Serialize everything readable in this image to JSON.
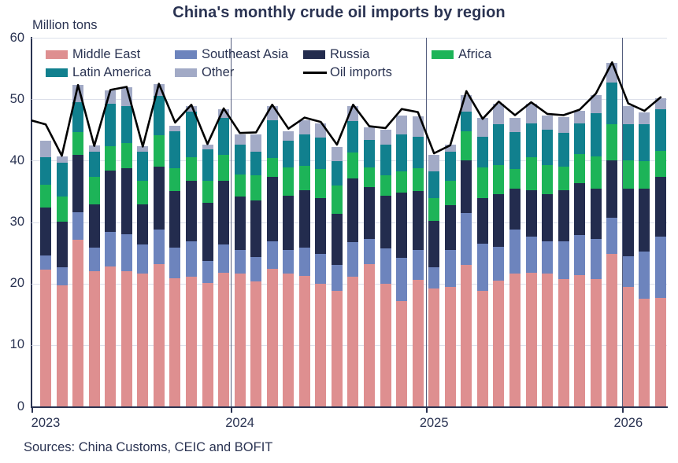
{
  "title": "China's monthly crude oil imports by region",
  "y_axis_unit": "Million tons",
  "source_note": "Sources: China Customs, CEIC and BOFIT",
  "colors": {
    "middle_east": "#DE8F90",
    "southeast_asia": "#6D84BD",
    "russia": "#232C4E",
    "africa": "#1DB458",
    "latin_america": "#11808E",
    "other": "#A2AAC6",
    "oil_imports_line": "#000000",
    "text": "#2A3352",
    "gridline": "#DCE0EA",
    "axis": "#2A3352",
    "background": "#FFFFFF"
  },
  "chart_data": {
    "type": "stacked_bar_with_line",
    "title": "China's monthly crude oil imports by region",
    "ylabel": "Million tons",
    "ylim": [
      0,
      60
    ],
    "ytick_interval": 10,
    "grid": "horizontal",
    "legend_position": "inside-top-left",
    "x_year_labels": [
      "2023",
      "2024",
      "2025",
      "2026"
    ],
    "months": [
      "2023-01",
      "2023-02",
      "2023-03",
      "2023-04",
      "2023-05",
      "2023-06",
      "2023-07",
      "2023-08",
      "2023-09",
      "2023-10",
      "2023-11",
      "2023-12",
      "2024-01",
      "2024-02",
      "2024-03",
      "2024-04",
      "2024-05",
      "2024-06",
      "2024-07",
      "2024-08",
      "2024-09",
      "2024-10",
      "2024-11",
      "2024-12",
      "2025-01",
      "2025-02",
      "2025-03",
      "2025-04",
      "2025-05",
      "2025-06",
      "2025-07",
      "2025-08",
      "2025-09",
      "2025-10",
      "2025-11",
      "2025-12",
      "2026-01",
      "2026-02",
      "2026-03"
    ],
    "series": [
      {
        "name": "Middle East",
        "color": "#DE8F90",
        "values": [
          22.2,
          19.7,
          27.1,
          22.0,
          22.8,
          22.0,
          21.6,
          23.1,
          20.9,
          21.1,
          20.1,
          21.8,
          21.6,
          20.3,
          22.4,
          21.6,
          21.2,
          19.9,
          18.8,
          21.1,
          23.1,
          20.0,
          17.2,
          20.6,
          19.2,
          19.4,
          23.0,
          18.8,
          20.5,
          21.6,
          21.7,
          21.6,
          20.7,
          21.4,
          20.7,
          24.8,
          19.4,
          17.5,
          17.7
        ]
      },
      {
        "name": "Southeast Asia",
        "color": "#6D84BD",
        "values": [
          2.4,
          2.9,
          4.5,
          3.8,
          5.6,
          6.0,
          4.7,
          5.7,
          4.9,
          5.8,
          3.6,
          4.5,
          3.8,
          4.0,
          4.5,
          3.8,
          4.6,
          4.9,
          4.2,
          5.7,
          4.1,
          5.7,
          7.0,
          4.8,
          3.4,
          6.1,
          8.5,
          7.7,
          5.5,
          7.2,
          6.0,
          5.3,
          6.2,
          6.5,
          6.6,
          5.9,
          5.1,
          7.7,
          10.0
        ]
      },
      {
        "name": "Russia",
        "color": "#232C4E",
        "values": [
          7.8,
          7.5,
          9.4,
          7.1,
          10.0,
          10.8,
          6.6,
          10.2,
          9.2,
          9.8,
          9.4,
          10.4,
          8.7,
          9.2,
          10.4,
          8.9,
          9.4,
          9.1,
          8.3,
          10.3,
          8.5,
          8.6,
          10.6,
          9.6,
          7.6,
          7.3,
          8.6,
          7.4,
          8.6,
          6.6,
          7.5,
          7.7,
          8.3,
          8.5,
          8.1,
          9.4,
          10.9,
          10.2,
          9.6
        ]
      },
      {
        "name": "Africa",
        "color": "#1DB458",
        "values": [
          3.7,
          4.1,
          3.6,
          4.4,
          3.9,
          4.1,
          3.8,
          5.1,
          3.8,
          3.8,
          3.6,
          4.3,
          3.7,
          4.1,
          3.1,
          4.6,
          4.0,
          4.7,
          4.7,
          4.2,
          3.2,
          3.3,
          3.5,
          3.8,
          3.7,
          3.9,
          4.7,
          5.0,
          4.7,
          3.2,
          5.3,
          4.7,
          3.8,
          4.7,
          5.3,
          5.8,
          4.7,
          4.5,
          4.3
        ]
      },
      {
        "name": "Latin America",
        "color": "#11808E",
        "values": [
          4.4,
          5.5,
          4.9,
          4.2,
          7.0,
          6.0,
          4.7,
          6.4,
          6.0,
          7.5,
          5.2,
          5.9,
          4.8,
          3.8,
          6.2,
          4.4,
          5.1,
          5.1,
          3.9,
          5.2,
          4.5,
          5.0,
          6.0,
          5.1,
          4.4,
          4.7,
          3.2,
          5.0,
          6.6,
          6.0,
          5.6,
          5.7,
          5.5,
          4.9,
          7.0,
          6.8,
          5.8,
          6.0,
          6.8
        ]
      },
      {
        "name": "Other",
        "color": "#A2AAC6",
        "values": [
          2.8,
          1.0,
          2.8,
          1.0,
          2.1,
          3.0,
          1.0,
          2.0,
          0.9,
          0.9,
          0.7,
          1.5,
          1.7,
          2.9,
          2.3,
          1.5,
          2.3,
          2.4,
          2.3,
          2.4,
          2.0,
          2.4,
          3.1,
          3.3,
          2.7,
          1.2,
          2.7,
          3.0,
          3.4,
          2.4,
          3.2,
          2.4,
          2.6,
          2.1,
          3.0,
          3.2,
          3.0,
          1.9,
          1.7
        ]
      }
    ],
    "line_series": {
      "name": "Oil imports",
      "color": "#000000",
      "values": [
        45.9,
        40.8,
        52.3,
        42.4,
        51.5,
        52.0,
        42.3,
        52.5,
        46.2,
        49.1,
        42.7,
        48.5,
        44.5,
        44.6,
        49.1,
        45.2,
        47.0,
        46.3,
        42.6,
        49.1,
        45.6,
        45.3,
        48.4,
        47.9,
        41.2,
        42.5,
        51.3,
        46.8,
        49.6,
        47.4,
        49.5,
        47.6,
        47.4,
        48.3,
        50.9,
        56.0,
        49.3,
        48.1,
        50.3
      ]
    }
  }
}
